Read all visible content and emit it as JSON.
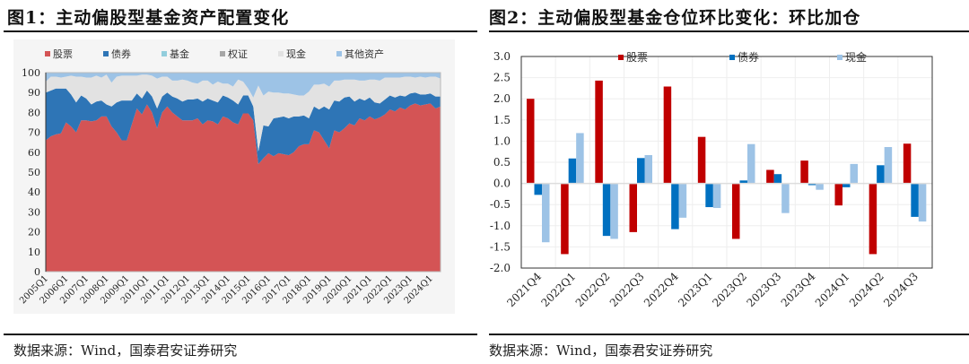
{
  "panels": [
    {
      "title": "图1：主动偏股型基金资产配置变化",
      "source": "数据来源：Wind，国泰君安证券研究"
    },
    {
      "title": "图2：主动偏股型基金仓位环比变化：环比加仓",
      "source": "数据来源：Wind，国泰君安证券研究"
    }
  ],
  "chart_data": [
    {
      "type": "area",
      "stacked": true,
      "title": "",
      "ylim": [
        0,
        100
      ],
      "yticks": [
        0,
        10,
        20,
        30,
        40,
        50,
        60,
        70,
        80,
        90,
        100
      ],
      "start": "2005Q1",
      "end": "2024Q3",
      "xtick_labels": [
        "2005Q1",
        "2006Q1",
        "2007Q1",
        "2008Q1",
        "2009Q1",
        "2010Q1",
        "2011Q1",
        "2012Q1",
        "2013Q1",
        "2014Q1",
        "2015Q1",
        "2016Q1",
        "2017Q1",
        "2018Q1",
        "2019Q1",
        "2020Q1",
        "2021Q1",
        "2022Q1",
        "2023Q1",
        "2024Q1"
      ],
      "legend": "top",
      "series": [
        {
          "name": "股票",
          "color": "#d45455",
          "values": [
            66,
            68,
            69,
            69.5,
            75,
            73,
            70,
            76,
            76,
            75.5,
            76,
            78,
            78,
            73,
            70,
            66,
            66,
            74,
            82,
            79,
            84,
            80,
            72,
            80,
            83,
            80,
            78,
            76,
            76,
            76,
            77,
            74,
            76,
            75.5,
            74,
            78,
            77,
            75,
            74,
            79.5,
            79.5,
            76,
            54,
            57,
            59.5,
            58,
            59.5,
            59,
            58.5,
            60,
            63,
            64,
            64,
            71,
            70,
            66,
            62,
            71,
            70,
            72,
            74.5,
            73.5,
            77,
            76,
            78,
            76.5,
            77.5,
            79,
            81.5,
            80.5,
            82.5,
            81.5,
            83.5,
            84.5,
            83.5,
            84,
            84.5,
            82,
            83
          ]
        },
        {
          "name": "债券",
          "color": "#2e75b6",
          "values": [
            24,
            23,
            23,
            22.5,
            17,
            16,
            15,
            12.5,
            11,
            8.5,
            9.5,
            8,
            6,
            10,
            15,
            20,
            20,
            12,
            7.5,
            8,
            7,
            8,
            10,
            8,
            7,
            8,
            9,
            9.5,
            10.5,
            10.5,
            10,
            11.5,
            11,
            10.5,
            11,
            10.5,
            10.5,
            11,
            10,
            9,
            9,
            7,
            6.5,
            16.5,
            13.5,
            19,
            18,
            19,
            18.5,
            18,
            15,
            14.5,
            13,
            12,
            11.5,
            17,
            19.5,
            15,
            15.5,
            15.5,
            13.5,
            12,
            10,
            10,
            9.5,
            8.5,
            7,
            7.5,
            7,
            7,
            6,
            6.5,
            6,
            5.5,
            5.5,
            5,
            5,
            6,
            5
          ]
        },
        {
          "name": "基金",
          "color": "#92cddc",
          "values": []
        },
        {
          "name": "权证",
          "color": "#a6a6a6",
          "values": []
        },
        {
          "name": "现金",
          "color": "#e2e2e2",
          "values": [
            5.5,
            7,
            6,
            5.5,
            6,
            9.5,
            13,
            9.5,
            10.5,
            13.5,
            13,
            11.5,
            15,
            12,
            13,
            12.5,
            12.5,
            12.5,
            9,
            12,
            8,
            10.5,
            15,
            10,
            8,
            8,
            9,
            11,
            9.5,
            8.5,
            7.5,
            10.5,
            9,
            8,
            10.5,
            6,
            7,
            7,
            12.5,
            7,
            3.5,
            4.5,
            33,
            15,
            17.5,
            13,
            12.5,
            11.5,
            12.5,
            11,
            10.5,
            10,
            13.5,
            11,
            12.5,
            11.5,
            11.5,
            10,
            10.5,
            9,
            8.5,
            11,
            9,
            10,
            9,
            11.5,
            11.5,
            11,
            9,
            10,
            9,
            10,
            8.5,
            7.5,
            9,
            8.5,
            8.5,
            10,
            9
          ]
        },
        {
          "name": "其他资产",
          "color": "#9dc3e6",
          "values": [
            4.5,
            2,
            2,
            2.5,
            2,
            1.5,
            2,
            2,
            2.5,
            2.5,
            1.5,
            2.5,
            1,
            5,
            2,
            1.5,
            1.5,
            1.5,
            1.5,
            1,
            1,
            1.5,
            3,
            2,
            2,
            4,
            4,
            3.5,
            4,
            5,
            5.5,
            4,
            4,
            6,
            4.5,
            5.5,
            5.5,
            7,
            3.5,
            4.5,
            8,
            12.5,
            6.5,
            11.5,
            9.5,
            10,
            10,
            10.5,
            10.5,
            11,
            11.5,
            11.5,
            9.5,
            6,
            6,
            5.5,
            7,
            4,
            4,
            3.5,
            3.5,
            3.5,
            4,
            4,
            3.5,
            3.5,
            4,
            2.5,
            2.5,
            2.5,
            2.5,
            2,
            2,
            2.5,
            2,
            2.5,
            2,
            2,
            3
          ]
        }
      ]
    },
    {
      "type": "bar",
      "title": "",
      "ylim": [
        -2,
        3
      ],
      "yticks": [
        "3.0",
        "2.5",
        "2.0",
        "1.5",
        "1.0",
        "0.5",
        "0.0",
        "-0.5",
        "-1.0",
        "-1.5",
        "-2.0"
      ],
      "legend": "top",
      "categories": [
        "2021Q4",
        "2022Q1",
        "2022Q2",
        "2022Q3",
        "2022Q4",
        "2023Q1",
        "2023Q2",
        "2023Q3",
        "2023Q4",
        "2024Q1",
        "2024Q2",
        "2024Q3"
      ],
      "series": [
        {
          "name": "股票",
          "color": "#c00000",
          "values": [
            2.0,
            -1.67,
            2.43,
            -1.15,
            2.29,
            1.1,
            -1.31,
            0.32,
            0.54,
            -0.52,
            -1.67,
            0.94
          ]
        },
        {
          "name": "债券",
          "color": "#0070c0",
          "values": [
            -0.27,
            0.59,
            -1.24,
            0.6,
            -1.08,
            -0.56,
            0.07,
            0.22,
            -0.04,
            -0.09,
            0.43,
            -0.79
          ]
        },
        {
          "name": "现金",
          "color": "#9dc3e6",
          "values": [
            -1.39,
            1.19,
            -1.31,
            0.67,
            -0.81,
            -0.58,
            0.93,
            -0.7,
            -0.15,
            0.46,
            0.86,
            -0.9
          ]
        }
      ]
    }
  ]
}
